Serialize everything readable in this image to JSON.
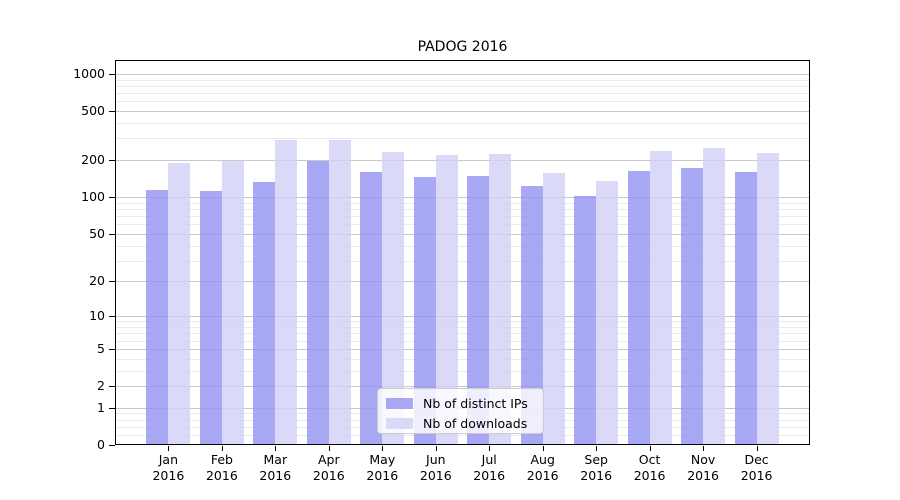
{
  "chart_data": {
    "type": "bar",
    "title": "PADOG 2016",
    "year_label": "2016",
    "categories": [
      "Jan",
      "Feb",
      "Mar",
      "Apr",
      "May",
      "Jun",
      "Jul",
      "Aug",
      "Sep",
      "Oct",
      "Nov",
      "Dec"
    ],
    "series": [
      {
        "name": "Nb of distinct IPs",
        "color": "#9292f2",
        "values": [
          114,
          112,
          134,
          195,
          160,
          145,
          149,
          124,
          102,
          164,
          174,
          161
        ]
      },
      {
        "name": "Nb of downloads",
        "color": "#d1d1f6",
        "values": [
          191,
          197,
          290,
          292,
          233,
          221,
          226,
          156,
          136,
          239,
          253,
          228
        ]
      }
    ],
    "y_axis": {
      "scale": "log10(1+v)",
      "ticks": [
        1000,
        500,
        200,
        100,
        50,
        20,
        10,
        5,
        2,
        1,
        0
      ],
      "minor_ticks": [
        0.2,
        0.4,
        0.6,
        0.8,
        3,
        4,
        6,
        7,
        8,
        9,
        30,
        40,
        60,
        70,
        80,
        90,
        300,
        400,
        600,
        700,
        800,
        900
      ],
      "range_top": 1000
    },
    "legend_position": "lower center",
    "colors": {
      "grid_major": "#c8c8c8",
      "grid_minor": "#ebebeb",
      "spine": "#000000",
      "background": "#ffffff"
    }
  }
}
